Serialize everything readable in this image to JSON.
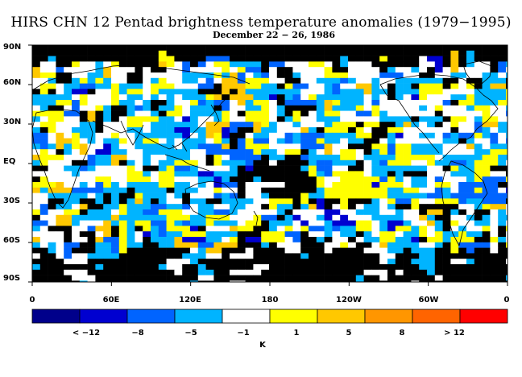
{
  "title": "HIRS CHN 12 Pentad brightness temperature anomalies (1979−1995)",
  "subtitle": "December 22 − 26, 1986",
  "lat_labels": [
    "90N",
    "60N",
    "30N",
    "EQ",
    "30S",
    "60S",
    "90S"
  ],
  "lon_labels": [
    "0",
    "60E",
    "120E",
    "180",
    "120W",
    "60W",
    "0"
  ],
  "colorbar": {
    "unit": "K",
    "colors": [
      "#00008b",
      "#0000d0",
      "#0064ff",
      "#00b4ff",
      "#ffffff",
      "#ffff00",
      "#ffc800",
      "#ff9600",
      "#ff6400",
      "#ff0000"
    ],
    "labels": [
      "< −12",
      "−8",
      "−5",
      "−1",
      "1",
      "5",
      "8",
      "> 12"
    ]
  },
  "map_colors": {
    "missing": "#000000",
    "coastline": "#000000"
  }
}
